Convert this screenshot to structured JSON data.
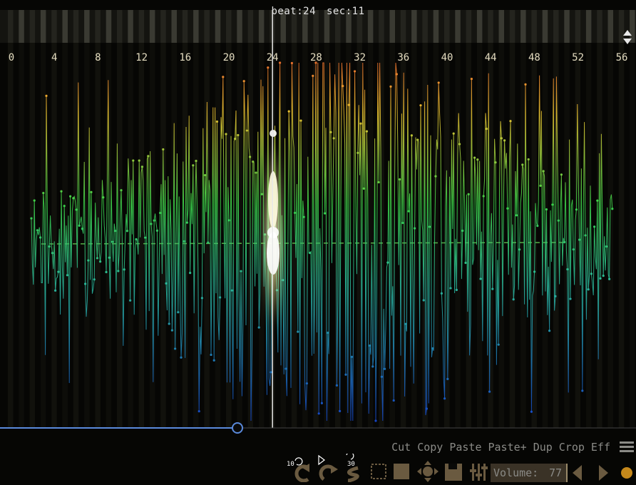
{
  "header": {
    "beat_label": "beat:",
    "beat_value": "24",
    "sec_label": "sec:",
    "sec_value": "11"
  },
  "ruler": {
    "labels": [
      "0",
      "4",
      "8",
      "12",
      "16",
      "20",
      "24",
      "28",
      "32",
      "36",
      "40",
      "44",
      "48",
      "52",
      "56"
    ]
  },
  "playhead": {
    "beat": 24
  },
  "position_slider": {
    "progress": 0.373
  },
  "edit_menu": {
    "items": [
      "Cut",
      "Copy",
      "Paste",
      "Paste+",
      "Dup",
      "Crop",
      "Eff"
    ]
  },
  "toolbar": {
    "skip_back_label": "10",
    "skip_forward_label": "30",
    "volume_label": "Volume:",
    "volume_value": "77"
  },
  "colors": {
    "background": "#060604",
    "ruler_dark": "#141410",
    "ruler_light": "#3a3a32",
    "wave_top": "#e8602a",
    "wave_mid": "#3ad048",
    "wave_bottom": "#1448c8",
    "playhead_glow": "#fff8c8",
    "slider_line": "#5a8adc",
    "toolbar_icon": "#6a5a40",
    "record_dot": "#e8a020"
  }
}
